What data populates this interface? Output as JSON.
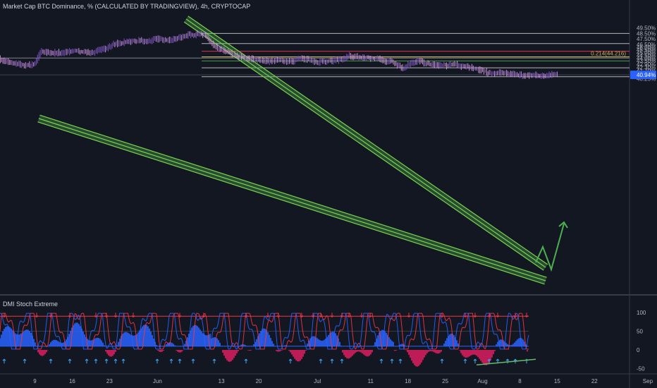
{
  "header": {
    "title": "Market Cap BTC Dominance, % (CALCULATED BY TRADINGVIEW), 4h, CRYPTOCAP"
  },
  "indicator": {
    "title": "DMI Stoch Extreme"
  },
  "chart_data": [
    {
      "type": "line",
      "title": "Market Cap BTC Dominance, % (CALCULATED BY TRADINGVIEW), 4h, CRYPTOCAP",
      "ylim": [
        40.1,
        49.6
      ],
      "y_ticks": [
        "49.50%",
        "48.50%",
        "47.50%",
        "46.50%",
        "46.00%",
        "45.50%",
        "45.00%",
        "44.50%",
        "44.00%",
        "43.50%",
        "42.90%",
        "42.30%",
        "41.70%",
        "41.20%",
        "40.70%",
        "40.25%"
      ],
      "x_ticks": [
        "9",
        "16",
        "23",
        "Jun",
        "13",
        "20",
        "Jul",
        "11",
        "18",
        "25",
        "Aug",
        "8",
        "15",
        "22",
        "Sep"
      ],
      "last_price_label": "40.94%",
      "fib_label": "0.214(44.216)",
      "series": [
        {
          "x": [
            "May 2",
            "May 4",
            "May 6",
            "May 8",
            "May 9",
            "May 10",
            "May 12",
            "May 14",
            "May 16",
            "May 18",
            "May 20",
            "May 22",
            "May 24",
            "May 26",
            "May 28",
            "May 30",
            "Jun 1",
            "Jun 3",
            "Jun 5",
            "Jun 7",
            "Jun 9",
            "Jun 10",
            "Jun 11",
            "Jun 12",
            "Jun 14",
            "Jun 16",
            "Jun 18",
            "Jun 20",
            "Jun 22",
            "Jun 24",
            "Jun 26",
            "Jun 28",
            "Jul 1",
            "Jul 3",
            "Jul 5",
            "Jul 7",
            "Jul 9",
            "Jul 11",
            "Jul 13",
            "Jul 15",
            "Jul 17",
            "Jul 19",
            "Jul 20",
            "Jul 21",
            "Jul 23",
            "Jul 25",
            "Jul 27",
            "Jul 29",
            "Jul 31",
            "Aug 2",
            "Aug 4",
            "Aug 6",
            "Aug 8",
            "Aug 10",
            "Aug 12",
            "Aug 14",
            "Aug 15"
          ],
          "values": [
            44.0,
            43.2,
            42.9,
            42.6,
            43.0,
            45.2,
            45.0,
            44.9,
            45.4,
            45.1,
            45.0,
            45.7,
            46.6,
            46.9,
            47.2,
            47.1,
            47.5,
            47.3,
            47.8,
            48.2,
            48.5,
            48.2,
            46.8,
            45.9,
            45.1,
            44.3,
            43.9,
            43.6,
            43.5,
            43.6,
            43.4,
            44.0,
            43.3,
            43.5,
            43.6,
            44.4,
            44.1,
            44.0,
            43.7,
            43.3,
            42.2,
            43.3,
            43.6,
            43.1,
            42.8,
            42.6,
            42.8,
            42.4,
            42.1,
            41.3,
            41.4,
            41.1,
            40.9,
            40.9,
            40.8,
            40.94,
            40.94
          ]
        }
      ],
      "horizontal_levels": [
        {
          "value": 48.5,
          "color": "#c8c8c8"
        },
        {
          "value": 46.65,
          "color": "#c8c8c8"
        },
        {
          "value": 45.25,
          "color": "#f23645"
        },
        {
          "value": 44.216,
          "color": "#f5d76e"
        },
        {
          "value": 44.0,
          "color": "#8a8f98"
        },
        {
          "value": 43.48,
          "color": "#4caf50"
        },
        {
          "value": 42.22,
          "color": "#c8c8c8"
        },
        {
          "value": 40.94,
          "color": "#5c6373"
        },
        {
          "value": 40.6,
          "color": "#c8c8c8"
        }
      ],
      "colors": {
        "background": "#131722",
        "candles": "#ce93d8",
        "channel": "#7bd34a",
        "projection": "#4caf50",
        "last_price": "#2962ff"
      }
    },
    {
      "type": "line",
      "title": "DMI Stoch Extreme",
      "ylim": [
        -60,
        110
      ],
      "y_ticks": [
        "100",
        "50",
        "0",
        "-50"
      ],
      "levels": [
        {
          "value": 90,
          "color": "#f23645"
        },
        {
          "value": 10,
          "color": "#2962ff"
        }
      ],
      "colors": {
        "stoch_line": "#f23645",
        "stoch_line_2": "#2962ff",
        "histogram_positive": "#2962ff",
        "histogram_negative": "#e91e63",
        "up_arrows": "#42a5f5",
        "down_arrows": "#f23645",
        "divergence_line": "#66bb6a"
      }
    }
  ]
}
